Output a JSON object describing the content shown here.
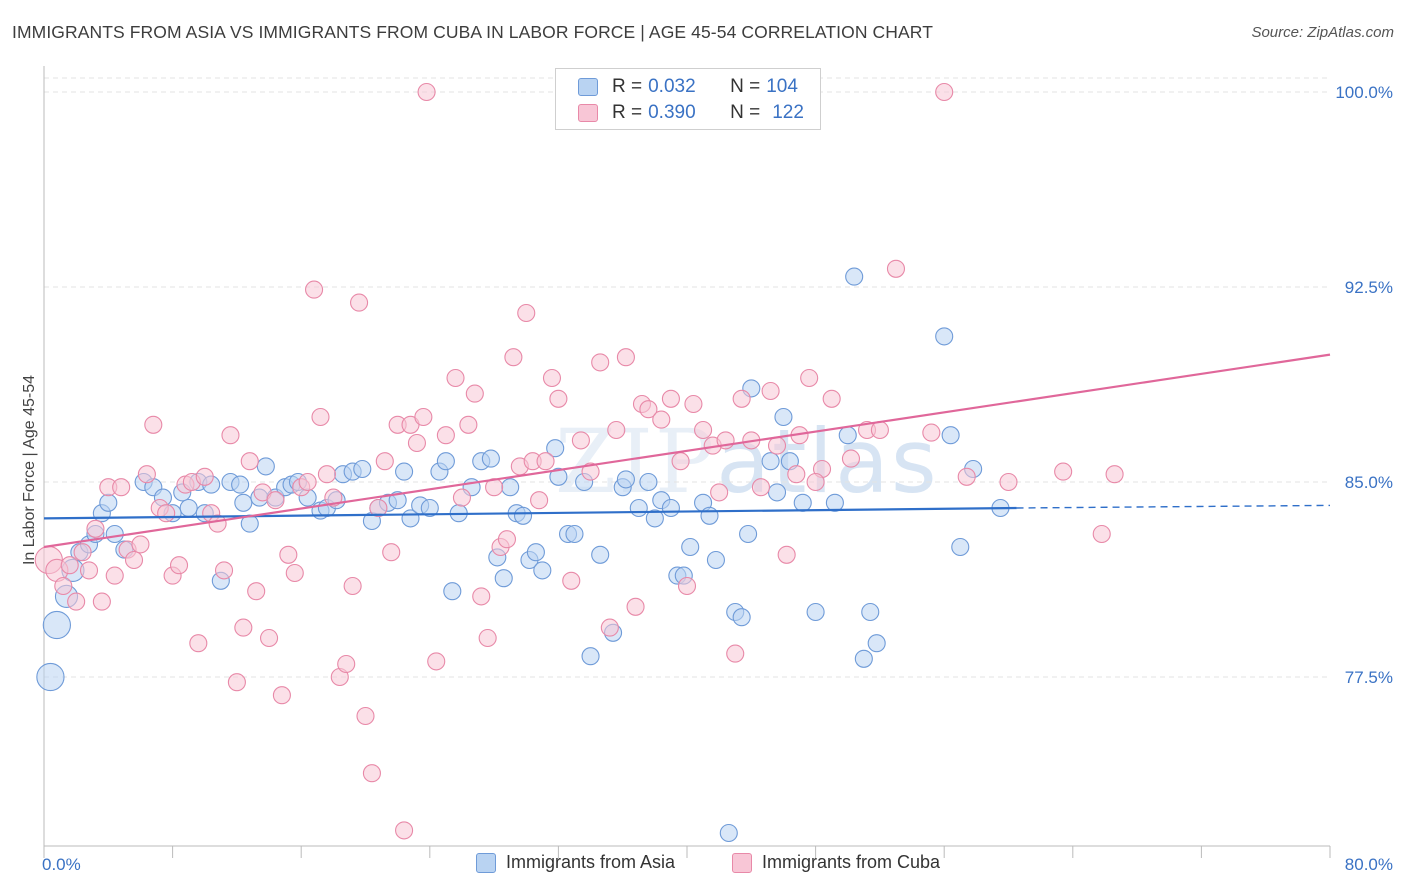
{
  "header": {
    "title": "IMMIGRANTS FROM ASIA VS IMMIGRANTS FROM CUBA IN LABOR FORCE | AGE 45-54 CORRELATION CHART",
    "source": "Source: ZipAtlas.com"
  },
  "watermark": {
    "zip": "ZIP",
    "atlas": "atlas"
  },
  "colors": {
    "asia_fill": "#b9d3f2",
    "asia_stroke": "#6f9bd8",
    "asia_line": "#2f6fc9",
    "cuba_fill": "#f8c6d6",
    "cuba_stroke": "#e889a8",
    "cuba_line": "#e0679a",
    "axis_text": "#3a72c4",
    "grid": "#e3e3e3"
  },
  "legend": {
    "rows": [
      {
        "r_label": "R = ",
        "r_value": "0.032",
        "n_label": "N = ",
        "n_value": "104"
      },
      {
        "r_label": "R = ",
        "r_value": "0.390",
        "n_label": "N = ",
        "n_value": "122"
      }
    ],
    "bottom": [
      "Immigrants from Asia",
      "Immigrants from Cuba"
    ]
  },
  "chart_data": {
    "type": "scatter",
    "title": "IMMIGRANTS FROM ASIA VS IMMIGRANTS FROM CUBA IN LABOR FORCE | AGE 45-54 CORRELATION CHART",
    "xlabel": "",
    "ylabel": "In Labor Force | Age 45-54",
    "xlim": [
      0,
      80
    ],
    "ylim": [
      71,
      101
    ],
    "x_tick_labels": [
      "0.0%",
      "80.0%"
    ],
    "y_ticks": [
      77.5,
      85.0,
      92.5,
      100.0
    ],
    "y_tick_labels": [
      "77.5%",
      "85.0%",
      "92.5%",
      "100.0%"
    ],
    "grid": true,
    "legend_position": "top-center",
    "series": [
      {
        "name": "Immigrants from Asia",
        "r": 0.032,
        "n": 104,
        "trend": {
          "x": [
            0,
            60.5
          ],
          "y": [
            83.6,
            84.0
          ],
          "dashed_to": [
            80,
            84.1
          ]
        },
        "points": [
          [
            0.4,
            77.5,
            1.6
          ],
          [
            0.8,
            79.5,
            1.6
          ],
          [
            1.4,
            80.6,
            1.3
          ],
          [
            1.8,
            81.6,
            1.3
          ],
          [
            2.2,
            82.3,
            1.0
          ],
          [
            2.8,
            82.6,
            1.0
          ],
          [
            3.2,
            83.0,
            1.0
          ],
          [
            3.6,
            83.8,
            1.0
          ],
          [
            4.0,
            84.2,
            1.0
          ],
          [
            4.4,
            83.0,
            1.0
          ],
          [
            5.0,
            82.4,
            1.0
          ],
          [
            6.2,
            85.0,
            1.0
          ],
          [
            6.8,
            84.8,
            1.0
          ],
          [
            7.4,
            84.4,
            1.0
          ],
          [
            8.0,
            83.8,
            1.0
          ],
          [
            8.6,
            84.6,
            1.0
          ],
          [
            9.0,
            84.0,
            1.0
          ],
          [
            9.6,
            85.0,
            1.0
          ],
          [
            10.0,
            83.8,
            1.0
          ],
          [
            10.4,
            84.9,
            1.0
          ],
          [
            11.0,
            81.2,
            1.0
          ],
          [
            11.6,
            85.0,
            1.0
          ],
          [
            12.2,
            84.9,
            1.0
          ],
          [
            12.4,
            84.2,
            1.0
          ],
          [
            12.8,
            83.4,
            1.0
          ],
          [
            13.4,
            84.4,
            1.0
          ],
          [
            13.8,
            85.6,
            1.0
          ],
          [
            14.4,
            84.4,
            1.0
          ],
          [
            15.0,
            84.8,
            1.0
          ],
          [
            15.4,
            84.9,
            1.0
          ],
          [
            15.8,
            85.0,
            1.0
          ],
          [
            16.4,
            84.4,
            1.0
          ],
          [
            17.2,
            83.9,
            1.0
          ],
          [
            17.6,
            84.0,
            1.0
          ],
          [
            18.2,
            84.3,
            1.0
          ],
          [
            18.6,
            85.3,
            1.0
          ],
          [
            19.2,
            85.4,
            1.0
          ],
          [
            19.8,
            85.5,
            1.0
          ],
          [
            20.4,
            83.5,
            1.0
          ],
          [
            20.8,
            84.0,
            1.0
          ],
          [
            21.4,
            84.2,
            1.0
          ],
          [
            22.0,
            84.3,
            1.0
          ],
          [
            22.4,
            85.4,
            1.0
          ],
          [
            22.8,
            83.6,
            1.0
          ],
          [
            23.4,
            84.1,
            1.0
          ],
          [
            24.0,
            84.0,
            1.0
          ],
          [
            24.6,
            85.4,
            1.0
          ],
          [
            25.0,
            85.8,
            1.0
          ],
          [
            25.4,
            80.8,
            1.0
          ],
          [
            25.8,
            83.8,
            1.0
          ],
          [
            26.6,
            84.8,
            1.0
          ],
          [
            27.2,
            85.8,
            1.0
          ],
          [
            27.8,
            85.9,
            1.0
          ],
          [
            28.2,
            82.1,
            1.0
          ],
          [
            28.6,
            81.3,
            1.0
          ],
          [
            29.0,
            84.8,
            1.0
          ],
          [
            29.4,
            83.8,
            1.0
          ],
          [
            29.8,
            83.7,
            1.0
          ],
          [
            30.2,
            82.0,
            1.0
          ],
          [
            30.6,
            82.3,
            1.0
          ],
          [
            31.0,
            81.6,
            1.0
          ],
          [
            31.8,
            86.3,
            1.0
          ],
          [
            32.0,
            85.2,
            1.0
          ],
          [
            32.6,
            83.0,
            1.0
          ],
          [
            33.0,
            83.0,
            1.0
          ],
          [
            33.6,
            85.0,
            1.0
          ],
          [
            34.0,
            78.3,
            1.0
          ],
          [
            34.6,
            82.2,
            1.0
          ],
          [
            35.4,
            79.2,
            1.0
          ],
          [
            36.0,
            84.8,
            1.0
          ],
          [
            36.2,
            85.1,
            1.0
          ],
          [
            37.0,
            84.0,
            1.0
          ],
          [
            37.6,
            85.0,
            1.0
          ],
          [
            38.0,
            83.6,
            1.0
          ],
          [
            38.4,
            84.3,
            1.0
          ],
          [
            39.0,
            84.0,
            1.0
          ],
          [
            39.4,
            81.4,
            1.0
          ],
          [
            39.8,
            81.4,
            1.0
          ],
          [
            40.2,
            82.5,
            1.0
          ],
          [
            41.0,
            84.2,
            1.0
          ],
          [
            41.4,
            83.7,
            1.0
          ],
          [
            41.8,
            82.0,
            1.0
          ],
          [
            42.6,
            71.5,
            1.0
          ],
          [
            43.0,
            80.0,
            1.0
          ],
          [
            43.4,
            79.8,
            1.0
          ],
          [
            43.8,
            83.0,
            1.0
          ],
          [
            44.0,
            88.6,
            1.0
          ],
          [
            45.2,
            85.8,
            1.0
          ],
          [
            45.6,
            84.6,
            1.0
          ],
          [
            46.0,
            87.5,
            1.0
          ],
          [
            46.4,
            85.8,
            1.0
          ],
          [
            47.2,
            84.2,
            1.0
          ],
          [
            48.0,
            80.0,
            1.0
          ],
          [
            49.2,
            84.2,
            1.0
          ],
          [
            50.0,
            86.8,
            1.0
          ],
          [
            50.4,
            92.9,
            1.0
          ],
          [
            51.0,
            78.2,
            1.0
          ],
          [
            51.4,
            80.0,
            1.0
          ],
          [
            51.8,
            78.8,
            1.0
          ],
          [
            56.0,
            90.6,
            1.0
          ],
          [
            56.4,
            86.8,
            1.0
          ],
          [
            57.0,
            82.5,
            1.0
          ],
          [
            59.5,
            84.0,
            1.0
          ],
          [
            57.8,
            85.5,
            1.0
          ]
        ]
      },
      {
        "name": "Immigrants from Cuba",
        "r": 0.39,
        "n": 122,
        "trend": {
          "x": [
            0,
            80
          ],
          "y": [
            82.5,
            89.9
          ]
        },
        "points": [
          [
            0.3,
            82.0,
            1.6
          ],
          [
            0.8,
            81.6,
            1.3
          ],
          [
            1.2,
            81.0,
            1.0
          ],
          [
            1.6,
            81.8,
            1.0
          ],
          [
            2.0,
            80.4,
            1.0
          ],
          [
            2.4,
            82.3,
            1.0
          ],
          [
            2.8,
            81.6,
            1.0
          ],
          [
            3.2,
            83.2,
            1.0
          ],
          [
            3.6,
            80.4,
            1.0
          ],
          [
            4.0,
            84.8,
            1.0
          ],
          [
            4.4,
            81.4,
            1.0
          ],
          [
            4.8,
            84.8,
            1.0
          ],
          [
            5.2,
            82.4,
            1.0
          ],
          [
            5.6,
            82.0,
            1.0
          ],
          [
            6.0,
            82.6,
            1.0
          ],
          [
            6.4,
            85.3,
            1.0
          ],
          [
            6.8,
            87.2,
            1.0
          ],
          [
            7.2,
            84.0,
            1.0
          ],
          [
            7.6,
            83.8,
            1.0
          ],
          [
            8.0,
            81.4,
            1.0
          ],
          [
            8.4,
            81.8,
            1.0
          ],
          [
            8.8,
            84.9,
            1.0
          ],
          [
            9.2,
            85.0,
            1.0
          ],
          [
            9.6,
            78.8,
            1.0
          ],
          [
            10.0,
            85.2,
            1.0
          ],
          [
            10.4,
            83.8,
            1.0
          ],
          [
            10.8,
            83.4,
            1.0
          ],
          [
            11.2,
            81.6,
            1.0
          ],
          [
            11.6,
            86.8,
            1.0
          ],
          [
            12.0,
            77.3,
            1.0
          ],
          [
            12.4,
            79.4,
            1.0
          ],
          [
            12.8,
            85.8,
            1.0
          ],
          [
            13.2,
            80.8,
            1.0
          ],
          [
            13.6,
            84.6,
            1.0
          ],
          [
            14.0,
            79.0,
            1.0
          ],
          [
            14.4,
            84.3,
            1.0
          ],
          [
            14.8,
            76.8,
            1.0
          ],
          [
            15.2,
            82.2,
            1.0
          ],
          [
            15.6,
            81.5,
            1.0
          ],
          [
            16.0,
            84.8,
            1.0
          ],
          [
            16.4,
            85.0,
            1.0
          ],
          [
            16.8,
            92.4,
            1.0
          ],
          [
            17.2,
            87.5,
            1.0
          ],
          [
            17.6,
            85.3,
            1.0
          ],
          [
            18.0,
            84.4,
            1.0
          ],
          [
            18.4,
            77.5,
            1.0
          ],
          [
            18.8,
            78.0,
            1.0
          ],
          [
            19.2,
            81.0,
            1.0
          ],
          [
            19.6,
            91.9,
            1.0
          ],
          [
            20.0,
            76.0,
            1.0
          ],
          [
            20.4,
            73.8,
            1.0
          ],
          [
            20.8,
            84.0,
            1.0
          ],
          [
            21.2,
            85.8,
            1.0
          ],
          [
            21.6,
            82.3,
            1.0
          ],
          [
            22.0,
            87.2,
            1.0
          ],
          [
            22.4,
            71.6,
            1.0
          ],
          [
            22.8,
            87.2,
            1.0
          ],
          [
            23.2,
            86.5,
            1.0
          ],
          [
            23.6,
            87.5,
            1.0
          ],
          [
            23.8,
            100.0,
            1.0
          ],
          [
            24.4,
            78.1,
            1.0
          ],
          [
            25.0,
            86.8,
            1.0
          ],
          [
            25.6,
            89.0,
            1.0
          ],
          [
            26.0,
            84.4,
            1.0
          ],
          [
            26.4,
            87.2,
            1.0
          ],
          [
            26.8,
            88.4,
            1.0
          ],
          [
            27.2,
            80.6,
            1.0
          ],
          [
            27.6,
            79.0,
            1.0
          ],
          [
            28.0,
            84.8,
            1.0
          ],
          [
            28.4,
            82.5,
            1.0
          ],
          [
            28.8,
            82.8,
            1.0
          ],
          [
            29.2,
            89.8,
            1.0
          ],
          [
            29.6,
            85.6,
            1.0
          ],
          [
            30.0,
            91.5,
            1.0
          ],
          [
            30.4,
            85.8,
            1.0
          ],
          [
            30.8,
            84.3,
            1.0
          ],
          [
            31.2,
            85.8,
            1.0
          ],
          [
            31.6,
            89.0,
            1.0
          ],
          [
            32.0,
            88.2,
            1.0
          ],
          [
            32.8,
            81.2,
            1.0
          ],
          [
            33.4,
            86.6,
            1.0
          ],
          [
            34.0,
            85.4,
            1.0
          ],
          [
            34.6,
            89.6,
            1.0
          ],
          [
            35.2,
            79.4,
            1.0
          ],
          [
            35.6,
            87.0,
            1.0
          ],
          [
            36.2,
            89.8,
            1.0
          ],
          [
            36.8,
            80.2,
            1.0
          ],
          [
            37.2,
            88.0,
            1.0
          ],
          [
            37.6,
            87.8,
            1.0
          ],
          [
            38.4,
            87.4,
            1.0
          ],
          [
            39.0,
            88.2,
            1.0
          ],
          [
            39.6,
            85.8,
            1.0
          ],
          [
            40.0,
            81.0,
            1.0
          ],
          [
            40.4,
            88.0,
            1.0
          ],
          [
            41.0,
            87.0,
            1.0
          ],
          [
            41.6,
            86.4,
            1.0
          ],
          [
            42.0,
            84.6,
            1.0
          ],
          [
            42.4,
            86.6,
            1.0
          ],
          [
            43.0,
            78.4,
            1.0
          ],
          [
            43.4,
            88.2,
            1.0
          ],
          [
            44.0,
            86.6,
            1.0
          ],
          [
            44.6,
            84.8,
            1.0
          ],
          [
            45.2,
            88.5,
            1.0
          ],
          [
            45.6,
            86.4,
            1.0
          ],
          [
            46.2,
            82.2,
            1.0
          ],
          [
            47.0,
            86.8,
            1.0
          ],
          [
            47.6,
            89.0,
            1.0
          ],
          [
            48.4,
            85.5,
            1.0
          ],
          [
            49.0,
            88.2,
            1.0
          ],
          [
            50.2,
            85.9,
            1.0
          ],
          [
            51.2,
            87.0,
            1.0
          ],
          [
            52.0,
            87.0,
            1.0
          ],
          [
            53.0,
            93.2,
            1.0
          ],
          [
            56.0,
            100.0,
            1.0
          ],
          [
            57.4,
            85.2,
            1.0
          ],
          [
            60.0,
            85.0,
            1.0
          ],
          [
            63.4,
            85.4,
            1.0
          ],
          [
            65.8,
            83.0,
            1.0
          ],
          [
            66.6,
            85.3,
            1.0
          ],
          [
            55.2,
            86.9,
            1.0
          ],
          [
            48.0,
            85.0,
            1.0
          ],
          [
            46.8,
            85.3,
            1.0
          ]
        ]
      }
    ]
  }
}
